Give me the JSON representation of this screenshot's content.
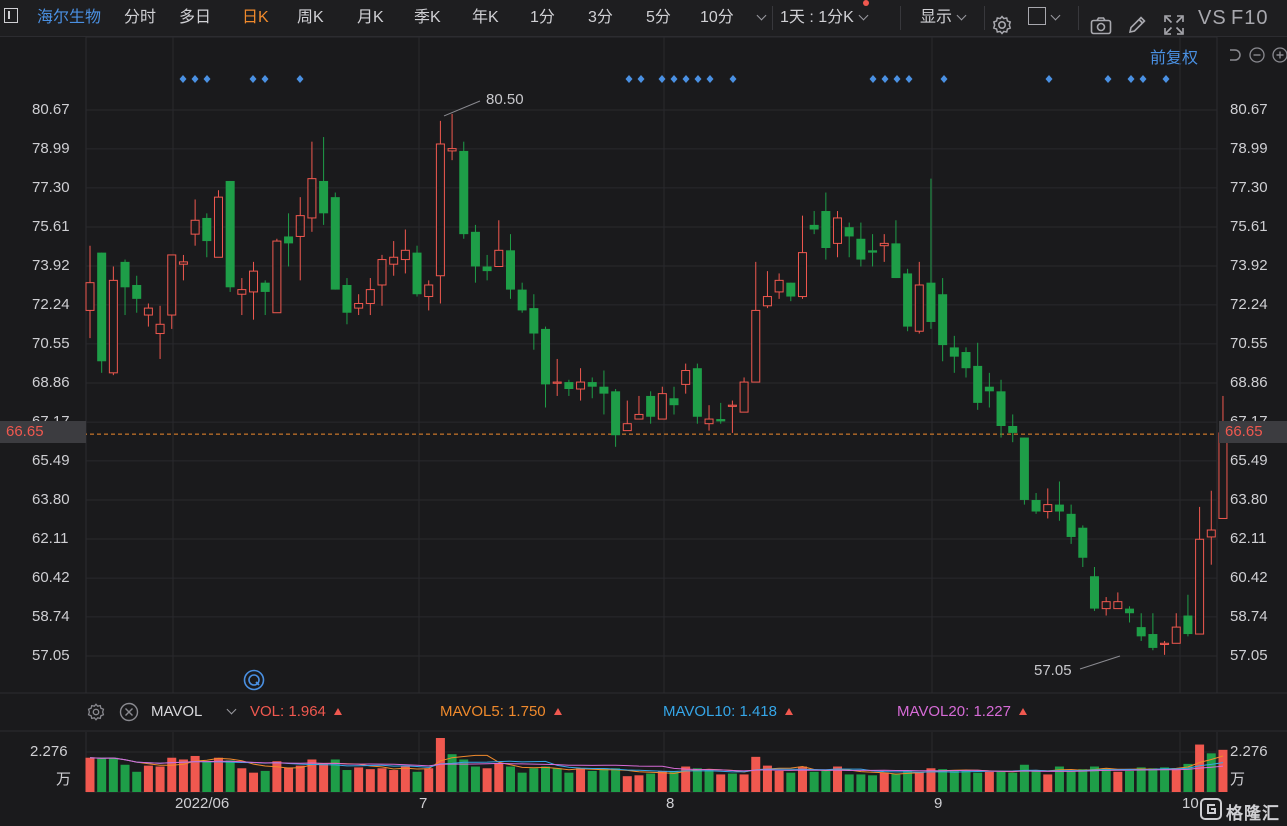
{
  "toolbar": {
    "stock_name": "海尔生物",
    "tabs": [
      "分时",
      "多日",
      "日K",
      "周K",
      "月K",
      "季K",
      "年K",
      "1分",
      "3分",
      "5分",
      "10分"
    ],
    "active_tab": "日K",
    "range_select": "1天 : 1分K",
    "display_label": "显示",
    "vs_label": "VS",
    "f10_label": "F10"
  },
  "restore_label": "前复权",
  "colors": {
    "up": "#f0584f",
    "down": "#1e9e48",
    "accent": "#f08a2c",
    "blue": "#4a90e2"
  },
  "price_axis": {
    "labels": [
      "80.67",
      "78.99",
      "77.30",
      "75.61",
      "73.92",
      "72.24",
      "70.55",
      "68.86",
      "67.17",
      "65.49",
      "63.80",
      "62.11",
      "60.42",
      "58.74",
      "57.05"
    ]
  },
  "current_price": "66.65",
  "high_annotation": "80.50",
  "low_annotation": "57.05",
  "volume_axis": {
    "top_label": "2.276",
    "unit_label": "万"
  },
  "x_axis": {
    "labels": [
      "2022/06",
      "7",
      "8",
      "9",
      "10"
    ]
  },
  "indicator": {
    "name": "MAVOL",
    "vol": {
      "label": "VOL:",
      "value": "1.964",
      "color": "#f0584f"
    },
    "mavol5": {
      "label": "MAVOL5:",
      "value": "1.750",
      "color": "#f08a2c"
    },
    "mavol10": {
      "label": "MAVOL10:",
      "value": "1.418",
      "color": "#35a6e8"
    },
    "mavol20": {
      "label": "MAVOL20:",
      "value": "1.227",
      "color": "#d66bd6"
    }
  },
  "chart_data": {
    "type": "candlestick",
    "x_ticks": [
      "2022/06",
      "7",
      "8",
      "9",
      "10"
    ],
    "ylim": [
      56,
      82
    ],
    "candles": [
      [
        72.0,
        73.2,
        74.8,
        70.8
      ],
      [
        74.5,
        69.8,
        74.5,
        69.3
      ],
      [
        69.3,
        73.3,
        73.9,
        69.2
      ],
      [
        74.1,
        73.0,
        74.2,
        71.8
      ],
      [
        73.1,
        72.5,
        73.5,
        71.9
      ],
      [
        71.8,
        72.1,
        72.3,
        71.3
      ],
      [
        71.0,
        71.4,
        72.2,
        69.9
      ],
      [
        71.8,
        74.4,
        74.4,
        71.2
      ],
      [
        74.0,
        74.1,
        74.4,
        73.3
      ],
      [
        75.3,
        75.9,
        76.8,
        74.8
      ],
      [
        76.0,
        75.0,
        76.2,
        74.3
      ],
      [
        74.3,
        76.9,
        77.2,
        74.3
      ],
      [
        77.6,
        73.0,
        77.6,
        72.8
      ],
      [
        72.7,
        72.9,
        73.4,
        71.8
      ],
      [
        72.8,
        73.7,
        74.1,
        71.6
      ],
      [
        73.2,
        72.8,
        73.3,
        71.8
      ],
      [
        71.9,
        75.0,
        75.1,
        71.9
      ],
      [
        75.2,
        74.9,
        76.2,
        73.9
      ],
      [
        75.2,
        76.1,
        76.9,
        73.3
      ],
      [
        76.0,
        77.7,
        79.3,
        75.4
      ],
      [
        77.6,
        76.2,
        79.5,
        75.7
      ],
      [
        76.9,
        72.9,
        77.1,
        72.9
      ],
      [
        73.1,
        71.9,
        73.4,
        71.4
      ],
      [
        72.1,
        72.3,
        72.7,
        71.8
      ],
      [
        72.3,
        72.9,
        73.4,
        71.8
      ],
      [
        73.1,
        74.2,
        74.4,
        72.2
      ],
      [
        74.0,
        74.3,
        75.0,
        73.5
      ],
      [
        74.2,
        74.6,
        75.5,
        73.6
      ],
      [
        74.5,
        72.7,
        74.8,
        72.6
      ],
      [
        72.6,
        73.1,
        73.3,
        72.0
      ],
      [
        73.5,
        79.2,
        80.2,
        72.3
      ],
      [
        78.9,
        79.0,
        80.5,
        78.5
      ],
      [
        78.9,
        75.3,
        79.3,
        75.1
      ],
      [
        75.4,
        73.9,
        75.7,
        73.2
      ],
      [
        73.9,
        73.7,
        74.4,
        73.3
      ],
      [
        73.9,
        74.6,
        75.9,
        73.9
      ],
      [
        74.6,
        72.9,
        75.3,
        72.5
      ],
      [
        72.9,
        72.0,
        73.2,
        71.9
      ],
      [
        72.1,
        71.0,
        72.7,
        70.3
      ],
      [
        71.2,
        68.8,
        71.3,
        67.8
      ],
      [
        68.9,
        68.9,
        69.9,
        68.3
      ],
      [
        68.9,
        68.6,
        69.0,
        68.3
      ],
      [
        68.6,
        68.9,
        69.5,
        68.1
      ],
      [
        68.9,
        68.7,
        69.1,
        68.2
      ],
      [
        68.7,
        68.4,
        69.4,
        67.5
      ],
      [
        68.5,
        66.6,
        68.6,
        66.1
      ],
      [
        66.8,
        67.1,
        68.1,
        66.8
      ],
      [
        67.3,
        67.5,
        68.3,
        67.3
      ],
      [
        68.3,
        67.4,
        68.5,
        67.1
      ],
      [
        67.3,
        68.4,
        68.7,
        67.3
      ],
      [
        68.2,
        67.9,
        68.7,
        67.5
      ],
      [
        68.8,
        69.4,
        69.7,
        68.4
      ],
      [
        69.5,
        67.4,
        69.7,
        67.1
      ],
      [
        67.1,
        67.3,
        67.9,
        66.8
      ],
      [
        67.3,
        67.2,
        68.0,
        67.1
      ],
      [
        67.9,
        67.9,
        68.1,
        66.7
      ],
      [
        67.6,
        68.9,
        69.1,
        67.6
      ],
      [
        68.9,
        72.0,
        74.1,
        68.9
      ],
      [
        72.2,
        72.6,
        73.7,
        72.1
      ],
      [
        72.8,
        73.3,
        73.6,
        72.5
      ],
      [
        73.2,
        72.6,
        73.2,
        72.4
      ],
      [
        72.6,
        74.5,
        76.1,
        72.5
      ],
      [
        75.7,
        75.5,
        76.3,
        75.3
      ],
      [
        76.3,
        74.7,
        77.1,
        74.2
      ],
      [
        74.9,
        76.0,
        76.3,
        74.3
      ],
      [
        75.6,
        75.2,
        75.8,
        74.3
      ],
      [
        75.1,
        74.2,
        75.8,
        73.9
      ],
      [
        74.6,
        74.5,
        75.3,
        73.9
      ],
      [
        74.8,
        74.9,
        75.3,
        74.1
      ],
      [
        74.9,
        73.4,
        75.9,
        73.4
      ],
      [
        73.6,
        71.3,
        73.8,
        71.1
      ],
      [
        71.1,
        73.1,
        74.1,
        71.0
      ],
      [
        73.2,
        71.5,
        77.7,
        71.2
      ],
      [
        72.7,
        70.5,
        73.4,
        69.8
      ],
      [
        70.4,
        70.0,
        70.9,
        69.3
      ],
      [
        70.2,
        69.5,
        70.4,
        69.1
      ],
      [
        69.6,
        68.0,
        70.6,
        67.7
      ],
      [
        68.7,
        68.5,
        69.3,
        67.8
      ],
      [
        68.5,
        67.0,
        69.0,
        66.5
      ],
      [
        67.0,
        66.7,
        67.5,
        66.3
      ],
      [
        66.5,
        63.8,
        66.5,
        63.6
      ],
      [
        63.8,
        63.3,
        64.1,
        63.2
      ],
      [
        63.3,
        63.6,
        64.3,
        63.0
      ],
      [
        63.6,
        63.3,
        64.6,
        62.9
      ],
      [
        63.2,
        62.2,
        63.6,
        61.9
      ],
      [
        62.6,
        61.3,
        62.7,
        60.9
      ],
      [
        60.5,
        59.1,
        60.9,
        59.0
      ],
      [
        59.1,
        59.4,
        59.6,
        58.8
      ],
      [
        59.1,
        59.4,
        59.8,
        59.1
      ],
      [
        59.1,
        58.9,
        59.2,
        58.5
      ],
      [
        58.3,
        57.9,
        58.9,
        57.7
      ],
      [
        58.0,
        57.4,
        58.9,
        57.3
      ],
      [
        57.6,
        57.6,
        57.7,
        57.1
      ],
      [
        57.6,
        58.3,
        58.9,
        57.6
      ],
      [
        58.8,
        58.0,
        59.7,
        57.9
      ],
      [
        58.0,
        62.1,
        63.5,
        58.0
      ],
      [
        62.2,
        62.5,
        64.2,
        61.0
      ],
      [
        63.0,
        66.7,
        68.3,
        63.0
      ]
    ],
    "volume": [
      [
        1.95,
        "u"
      ],
      [
        1.9,
        "d"
      ],
      [
        1.95,
        "d"
      ],
      [
        1.55,
        "d"
      ],
      [
        1.15,
        "d"
      ],
      [
        1.5,
        "u"
      ],
      [
        1.45,
        "u"
      ],
      [
        1.95,
        "u"
      ],
      [
        1.85,
        "u"
      ],
      [
        2.05,
        "u"
      ],
      [
        1.75,
        "d"
      ],
      [
        1.95,
        "u"
      ],
      [
        1.8,
        "d"
      ],
      [
        1.35,
        "u"
      ],
      [
        1.1,
        "u"
      ],
      [
        1.2,
        "d"
      ],
      [
        1.75,
        "u"
      ],
      [
        1.4,
        "u"
      ],
      [
        1.5,
        "u"
      ],
      [
        1.85,
        "u"
      ],
      [
        1.6,
        "u"
      ],
      [
        1.85,
        "d"
      ],
      [
        1.25,
        "d"
      ],
      [
        1.4,
        "u"
      ],
      [
        1.3,
        "u"
      ],
      [
        1.35,
        "u"
      ],
      [
        1.25,
        "u"
      ],
      [
        1.5,
        "u"
      ],
      [
        1.15,
        "d"
      ],
      [
        1.35,
        "u"
      ],
      [
        3.6,
        "u"
      ],
      [
        2.15,
        "d"
      ],
      [
        1.85,
        "d"
      ],
      [
        1.45,
        "d"
      ],
      [
        1.35,
        "u"
      ],
      [
        1.65,
        "u"
      ],
      [
        1.45,
        "d"
      ],
      [
        1.1,
        "d"
      ],
      [
        1.35,
        "d"
      ],
      [
        1.45,
        "d"
      ],
      [
        1.35,
        "d"
      ],
      [
        1.1,
        "d"
      ],
      [
        1.35,
        "u"
      ],
      [
        1.2,
        "d"
      ],
      [
        1.35,
        "d"
      ],
      [
        1.35,
        "d"
      ],
      [
        0.9,
        "u"
      ],
      [
        0.95,
        "u"
      ],
      [
        1.05,
        "d"
      ],
      [
        1.2,
        "u"
      ],
      [
        1.2,
        "d"
      ],
      [
        1.45,
        "u"
      ],
      [
        1.35,
        "d"
      ],
      [
        1.3,
        "d"
      ],
      [
        1.0,
        "u"
      ],
      [
        1.05,
        "d"
      ],
      [
        1.0,
        "u"
      ],
      [
        2.0,
        "u"
      ],
      [
        1.5,
        "u"
      ],
      [
        1.2,
        "u"
      ],
      [
        1.1,
        "d"
      ],
      [
        1.45,
        "u"
      ],
      [
        1.15,
        "d"
      ],
      [
        1.2,
        "d"
      ],
      [
        1.45,
        "u"
      ],
      [
        1.0,
        "d"
      ],
      [
        1.0,
        "d"
      ],
      [
        0.95,
        "d"
      ],
      [
        1.1,
        "u"
      ],
      [
        1.05,
        "d"
      ],
      [
        1.2,
        "d"
      ],
      [
        1.15,
        "u"
      ],
      [
        1.35,
        "u"
      ],
      [
        1.3,
        "d"
      ],
      [
        1.2,
        "d"
      ],
      [
        1.25,
        "d"
      ],
      [
        1.1,
        "d"
      ],
      [
        1.15,
        "u"
      ],
      [
        1.15,
        "d"
      ],
      [
        1.1,
        "d"
      ],
      [
        1.55,
        "d"
      ],
      [
        1.2,
        "d"
      ],
      [
        1.0,
        "u"
      ],
      [
        1.45,
        "d"
      ],
      [
        1.2,
        "d"
      ],
      [
        1.3,
        "d"
      ],
      [
        1.45,
        "d"
      ],
      [
        1.35,
        "d"
      ],
      [
        1.15,
        "u"
      ],
      [
        1.2,
        "d"
      ],
      [
        1.4,
        "d"
      ],
      [
        1.35,
        "d"
      ],
      [
        1.4,
        "d"
      ],
      [
        1.35,
        "u"
      ],
      [
        1.6,
        "d"
      ],
      [
        2.7,
        "u"
      ],
      [
        2.2,
        "d"
      ],
      [
        2.4,
        "u"
      ]
    ],
    "event_markers_x": [
      183,
      195,
      207,
      253,
      265,
      300,
      629,
      641,
      662,
      674,
      686,
      698,
      710,
      733,
      873,
      885,
      897,
      909,
      944,
      1049,
      1108,
      1131,
      1143,
      1166
    ]
  }
}
